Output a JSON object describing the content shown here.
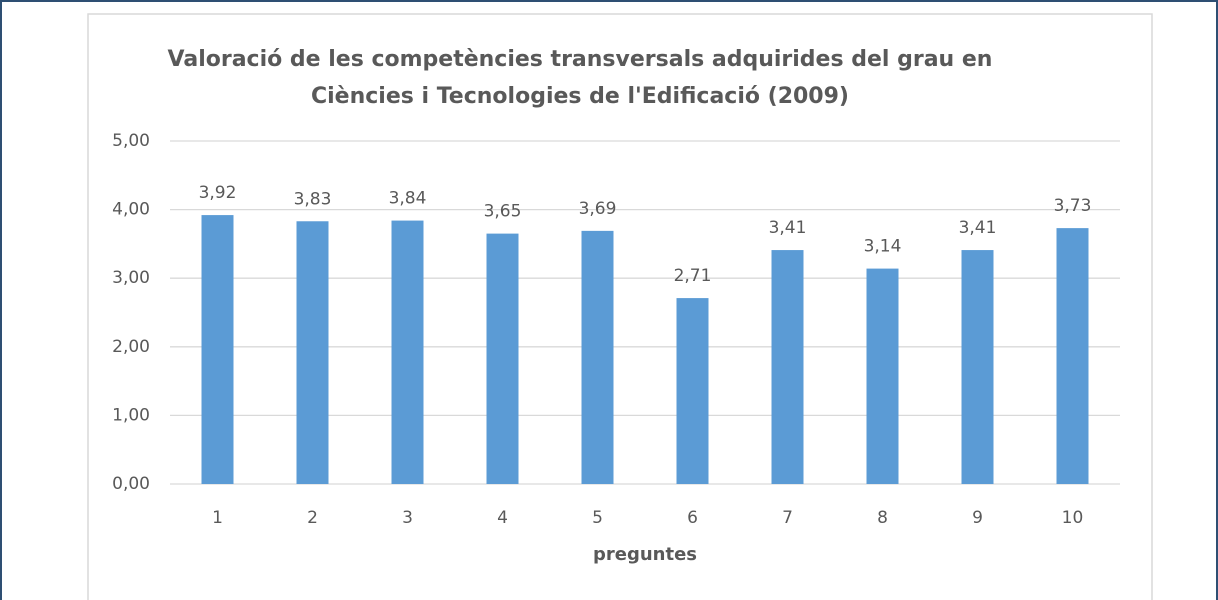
{
  "chart_data": {
    "type": "bar",
    "title": [
      "Valoració de les competències transversals adquirides del grau en",
      "Ciències i Tecnologies de l'Edificació (2009)"
    ],
    "x_label": "preguntes",
    "categories": [
      "1",
      "2",
      "3",
      "4",
      "5",
      "6",
      "7",
      "8",
      "9",
      "10"
    ],
    "values": [
      3.92,
      3.83,
      3.84,
      3.65,
      3.69,
      2.71,
      3.41,
      3.14,
      3.41,
      3.73
    ],
    "value_labels": [
      "3,92",
      "3,83",
      "3,84",
      "3,65",
      "3,69",
      "2,71",
      "3,41",
      "3,14",
      "3,41",
      "3,73"
    ],
    "color": "#5b9bd5",
    "ylim": [
      0,
      5
    ],
    "yticks": [
      {
        "value": 0,
        "label": "0,00"
      },
      {
        "value": 1,
        "label": "1,00"
      },
      {
        "value": 2,
        "label": "2,00"
      },
      {
        "value": 3,
        "label": "3,00"
      },
      {
        "value": 4,
        "label": "4,00"
      },
      {
        "value": 5,
        "label": "5,00"
      }
    ],
    "grid": true
  }
}
